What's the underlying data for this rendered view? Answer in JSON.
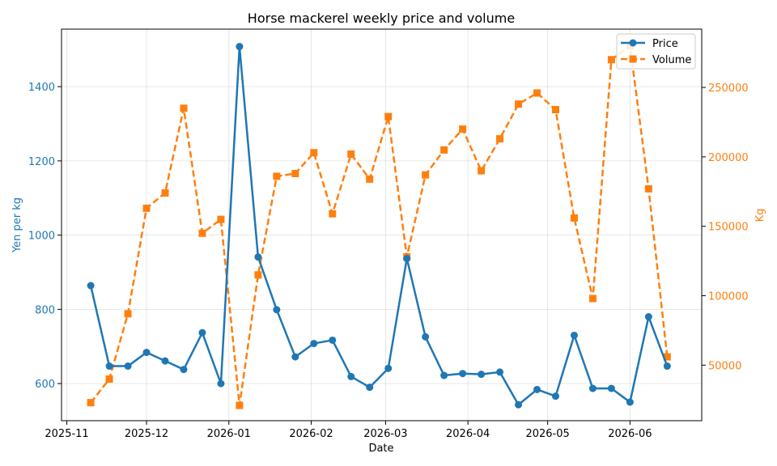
{
  "chart_data": {
    "type": "line",
    "title": "Horse mackerel weekly price and volume",
    "xlabel": "Date",
    "ylabel_left": "Yen per kg",
    "ylabel_right": "Kg",
    "x_ticks": [
      "2025-11-01",
      "2025-12-01",
      "2026-01-01",
      "2026-02-01",
      "2026-03-01",
      "2026-04-01",
      "2026-05-01",
      "2026-06-01"
    ],
    "x_tick_labels": [
      "2025-11",
      "2025-12",
      "2026-01",
      "2026-02",
      "2026-03",
      "2026-04",
      "2026-05",
      "2026-06"
    ],
    "x_range": [
      "2025-10-30",
      "2026-06-28"
    ],
    "y_left_range": [
      500,
      1555
    ],
    "y_left_ticks": [
      600,
      800,
      1000,
      1200,
      1400
    ],
    "y_right_range": [
      10000,
      292000
    ],
    "y_right_ticks": [
      50000,
      100000,
      150000,
      200000,
      250000
    ],
    "grid": true,
    "legend_position": "top-right",
    "colors": {
      "price": "#1f77b4",
      "volume": "#ff7f0e"
    },
    "dates": [
      "2025-11-10",
      "2025-11-17",
      "2025-11-24",
      "2025-12-01",
      "2025-12-08",
      "2025-12-15",
      "2025-12-22",
      "2025-12-29",
      "2026-01-05",
      "2026-01-12",
      "2026-01-19",
      "2026-01-26",
      "2026-02-02",
      "2026-02-09",
      "2026-02-16",
      "2026-02-23",
      "2026-03-02",
      "2026-03-09",
      "2026-03-16",
      "2026-03-23",
      "2026-03-30",
      "2026-04-06",
      "2026-04-13",
      "2026-04-20",
      "2026-04-27",
      "2026-05-04",
      "2026-05-11",
      "2026-05-18",
      "2026-05-25",
      "2026-06-01",
      "2026-06-08",
      "2026-06-15"
    ],
    "series": [
      {
        "name": "Price",
        "axis": "left",
        "style": "solid-circle",
        "values": [
          864,
          647,
          647,
          684,
          661,
          638,
          737,
          600,
          1508,
          941,
          799,
          672,
          708,
          717,
          619,
          590,
          641,
          937,
          726,
          622,
          627,
          625,
          631,
          543,
          584,
          566,
          730,
          587,
          587,
          550,
          780,
          647
        ]
      },
      {
        "name": "Volume",
        "axis": "right",
        "style": "dashed-square",
        "values": [
          23000,
          40000,
          87000,
          163000,
          174000,
          235000,
          145000,
          155000,
          21000,
          115000,
          186000,
          188000,
          203000,
          159000,
          202000,
          184000,
          229000,
          128000,
          187000,
          205000,
          220000,
          190000,
          213000,
          238000,
          246000,
          234000,
          156000,
          98000,
          270000,
          280000,
          177000,
          56000
        ]
      }
    ]
  }
}
